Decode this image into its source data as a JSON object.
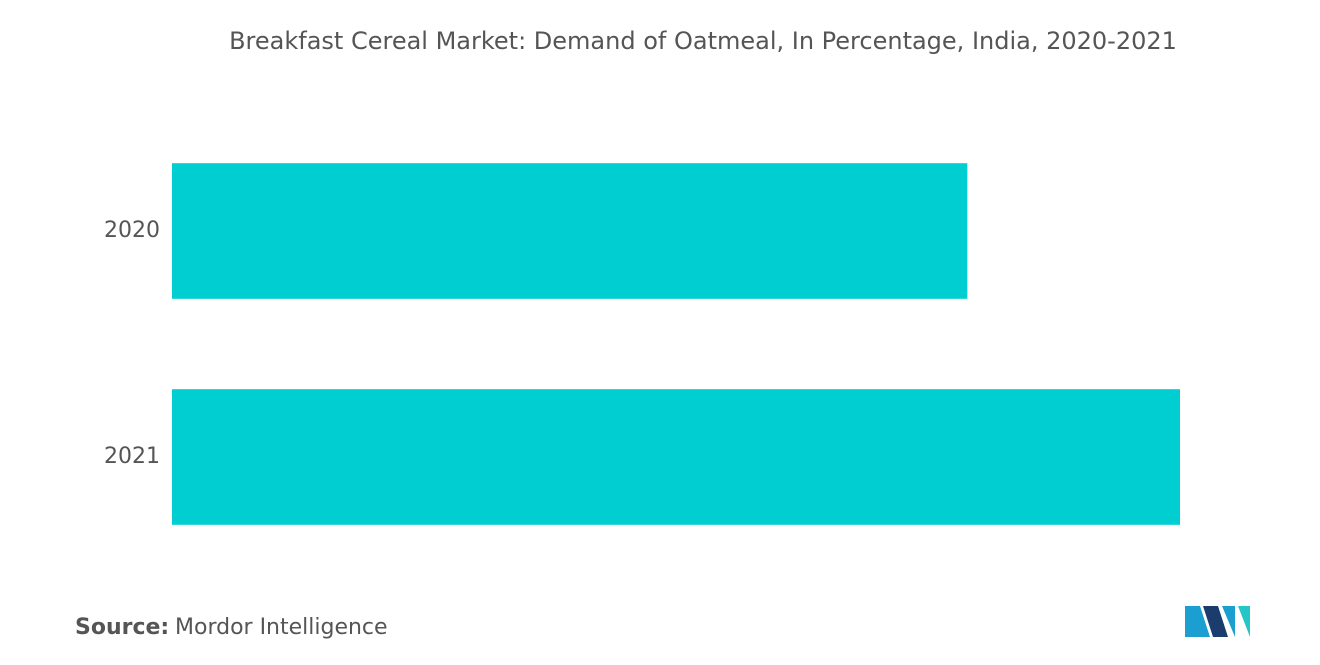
{
  "chart_data": {
    "type": "bar",
    "orientation": "horizontal",
    "title": "Breakfast Cereal Market: Demand of Oatmeal, In Percentage, India, 2020-2021",
    "categories": [
      "2020",
      "2021"
    ],
    "values": [
      78.9,
      100
    ],
    "color": "#00ced1"
  },
  "source": {
    "label": "Source:",
    "text": "Mordor Intelligence"
  }
}
